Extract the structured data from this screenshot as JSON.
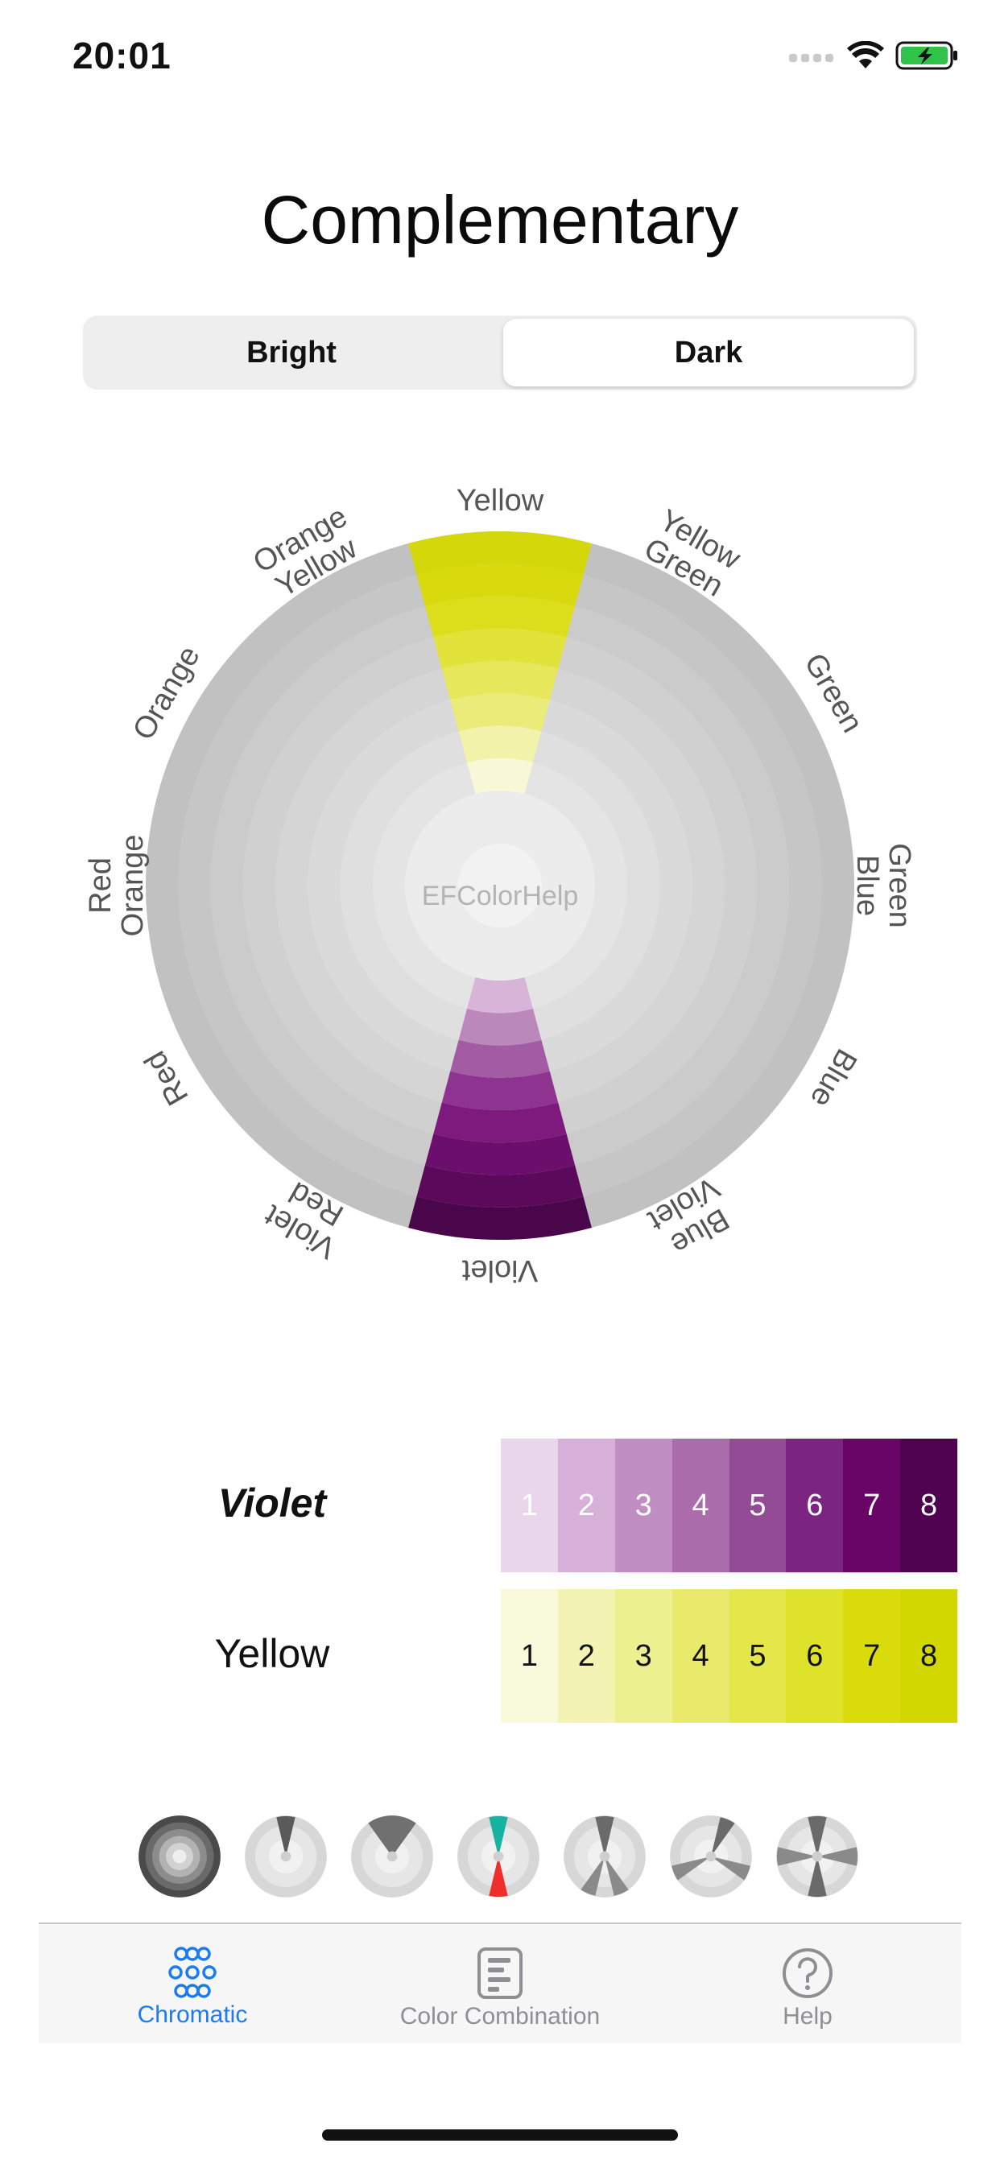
{
  "status_bar": {
    "time": "20:01"
  },
  "title": "Complementary",
  "segments": [
    {
      "label": "Bright",
      "selected": false
    },
    {
      "label": "Dark",
      "selected": true
    }
  ],
  "wheel": {
    "center_label": "EFColorHelp",
    "labels": [
      [
        "Yellow"
      ],
      [
        "Yellow",
        "Green"
      ],
      [
        "Green"
      ],
      [
        "Green",
        "Blue"
      ],
      [
        "Blue"
      ],
      [
        "Blue",
        "Violet"
      ],
      [
        "Violet"
      ],
      [
        "Violet",
        "Red"
      ],
      [
        "Red"
      ],
      [
        "Red",
        "Orange"
      ],
      [
        "Orange"
      ],
      [
        "Orange",
        "Yellow"
      ]
    ],
    "highlight_top": [
      "#d4d80a",
      "#d8da0e",
      "#dcde1c",
      "#e2e33a",
      "#e6e75a",
      "#ebeb7a",
      "#f2f2aa",
      "#f8f8d6"
    ],
    "highlight_bottom": [
      "#4a064a",
      "#5b0a5b",
      "#6c0e6c",
      "#7e1a7e",
      "#8e3390",
      "#a35ca4",
      "#bb88bb",
      "#d8b4d8"
    ]
  },
  "scales": [
    {
      "name": "Violet",
      "emphasized": true,
      "swatches": [
        {
          "label": "1",
          "color": "#ead6ea"
        },
        {
          "label": "2",
          "color": "#d6b0d6"
        },
        {
          "label": "3",
          "color": "#c08ec2"
        },
        {
          "label": "4",
          "color": "#aa6cab"
        },
        {
          "label": "5",
          "color": "#934b96"
        },
        {
          "label": "6",
          "color": "#7c2580"
        },
        {
          "label": "7",
          "color": "#690567"
        },
        {
          "label": "8",
          "color": "#4f0250"
        }
      ]
    },
    {
      "name": "Yellow",
      "emphasized": false,
      "swatches": [
        {
          "label": "1",
          "color": "#f9fadc"
        },
        {
          "label": "2",
          "color": "#f3f4b4"
        },
        {
          "label": "3",
          "color": "#edf08e"
        },
        {
          "label": "4",
          "color": "#e9ea6c"
        },
        {
          "label": "5",
          "color": "#e4e64a"
        },
        {
          "label": "6",
          "color": "#dfe22a"
        },
        {
          "label": "7",
          "color": "#d9dc0a"
        },
        {
          "label": "8",
          "color": "#d3d700"
        }
      ]
    }
  ],
  "combinations": [
    "monochromatic-wheel-icon",
    "complementary-wheel-icon",
    "analogous-wheel-icon",
    "complementary-color-icon",
    "split-complementary-wheel-icon",
    "triadic-wheel-icon",
    "tetradic-wheel-icon"
  ],
  "tabbar": {
    "tabs": [
      {
        "label": "Chromatic",
        "icon": "chromatic-icon",
        "active": true
      },
      {
        "label": "Color Combination",
        "icon": "document-icon",
        "active": false
      },
      {
        "label": "Help",
        "icon": "help-icon",
        "active": false
      }
    ],
    "active_color": "#1a7cf0",
    "inactive_color": "#8e8e93"
  }
}
